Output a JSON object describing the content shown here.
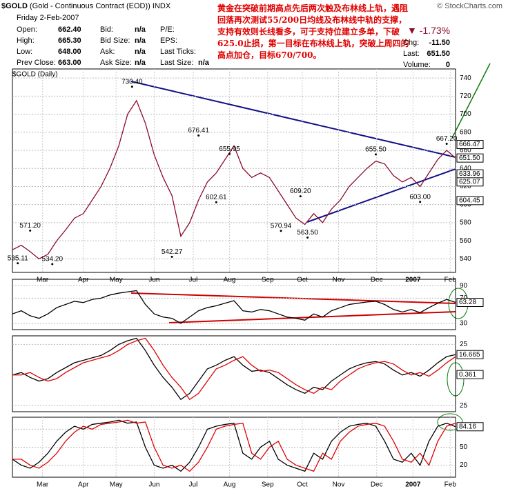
{
  "header": {
    "symbol": "$GOLD",
    "name": "(Gold - Continuous Contract (EOD))",
    "exchange": "INDX",
    "watermark": "© StockCharts.com",
    "date": "Friday  2-Feb-2007",
    "rows": [
      [
        "Open:",
        "662.40",
        "Bid:",
        "n/a",
        "P/E:"
      ],
      [
        "High:",
        "665.30",
        "Bid Size:",
        "n/a",
        "EPS:"
      ],
      [
        "Low:",
        "648.00",
        "Ask:",
        "n/a",
        "Last Ticks:"
      ],
      [
        "Prev Close:",
        "663.00",
        "Ask Size:",
        "n/a",
        "Last Size:",
        "n/a"
      ]
    ],
    "change_pct": "-1.73%",
    "quote": [
      [
        "Chg:",
        "-11.50"
      ],
      [
        "Last:",
        "651.50"
      ],
      [
        "Volume:",
        "0"
      ]
    ]
  },
  "annotation": "黄金在突破前期高点先后两次触及布林线上轨，遇阻回落再次测试55/200日均线及布林线中轨的支撑，支持有效则长线看多，可于支持位建立多单，下破625.0止损，第一目标在布林线上轨，突破上周四的高点加仓，目标670/700。",
  "chart_data": [
    {
      "type": "line",
      "title": "$GOLD (Daily)",
      "x": [
        0,
        1,
        2,
        3,
        4,
        5,
        6,
        7,
        8,
        9,
        10,
        11,
        12,
        13,
        14,
        15,
        16,
        17,
        18,
        19,
        20,
        21,
        22,
        23,
        24,
        25,
        26,
        27,
        28,
        29,
        30,
        31,
        32,
        33,
        34,
        35,
        36,
        37,
        38,
        39,
        40,
        41,
        42,
        43,
        44,
        45,
        46,
        47,
        48,
        49,
        50
      ],
      "series": [
        {
          "name": "$GOLD",
          "color": "#8b0a2a",
          "values": [
            550,
            555,
            548,
            540,
            545,
            560,
            572,
            585,
            590,
            605,
            620,
            640,
            665,
            700,
            715,
            690,
            655,
            630,
            610,
            565,
            580,
            605,
            625,
            635,
            650,
            665,
            640,
            630,
            635,
            630,
            615,
            600,
            585,
            578,
            590,
            580,
            595,
            605,
            620,
            630,
            640,
            648,
            645,
            632,
            625,
            630,
            620,
            635,
            650,
            660,
            651.5
          ]
        }
      ],
      "xlim": [
        0,
        50
      ],
      "xticks": [
        {
          "value": 3.4,
          "label": "Mar"
        },
        {
          "value": 8.0,
          "label": "Apr"
        },
        {
          "value": 11.7,
          "label": "May"
        },
        {
          "value": 16.0,
          "label": "Jun"
        },
        {
          "value": 20.4,
          "label": "Jul"
        },
        {
          "value": 24.5,
          "label": "Aug"
        },
        {
          "value": 28.8,
          "label": "Sep"
        },
        {
          "value": 32.7,
          "label": "Oct"
        },
        {
          "value": 36.8,
          "label": "Nov"
        },
        {
          "value": 41.1,
          "label": "Dec"
        },
        {
          "value": 45.2,
          "label": "2007"
        },
        {
          "value": 49.4,
          "label": "Feb"
        }
      ],
      "ylim": [
        525,
        750
      ],
      "yticks": [
        540,
        560,
        580,
        600,
        620,
        640,
        660,
        680,
        700,
        720,
        740
      ],
      "annotations": [
        {
          "x": 13.5,
          "value": 730.4,
          "label": "730.40"
        },
        {
          "x": 21,
          "value": 676.41,
          "label": "676.41"
        },
        {
          "x": 24.5,
          "value": 655.95,
          "label": "655.95"
        },
        {
          "x": 32.5,
          "value": 609.2,
          "label": "609.20"
        },
        {
          "x": 41,
          "value": 655.5,
          "label": "655.50"
        },
        {
          "x": 49,
          "value": 667.2,
          "label": "667.20"
        },
        {
          "x": 2,
          "value": 571.2,
          "label": "571.20"
        },
        {
          "x": 0.6,
          "value": 535.11,
          "label": "535.11"
        },
        {
          "x": 4.5,
          "value": 534.2,
          "label": "534.20"
        },
        {
          "x": 18,
          "value": 542.27,
          "label": "542.27"
        },
        {
          "x": 23,
          "value": 602.61,
          "label": "602.61"
        },
        {
          "x": 30.3,
          "value": 570.94,
          "label": "570.94"
        },
        {
          "x": 33.3,
          "value": 563.5,
          "label": "563.50"
        },
        {
          "x": 46,
          "value": 603.0,
          "label": "603.00"
        }
      ],
      "last_labels": [
        {
          "value": 666.47,
          "label": "666.47"
        },
        {
          "value": 651.5,
          "label": "651.50"
        },
        {
          "value": 633.96,
          "label": "633.96"
        },
        {
          "value": 625.07,
          "label": "625.07"
        },
        {
          "value": 604.45,
          "label": "604.45"
        }
      ]
    },
    {
      "type": "line",
      "x": [
        0,
        1,
        2,
        3,
        4,
        5,
        6,
        7,
        8,
        9,
        10,
        11,
        12,
        13,
        14,
        15,
        16,
        17,
        18,
        19,
        20,
        21,
        22,
        23,
        24,
        25,
        26,
        27,
        28,
        29,
        30,
        31,
        32,
        33,
        34,
        35,
        36,
        37,
        38,
        39,
        40,
        41,
        42,
        43,
        44,
        45,
        46,
        47,
        48,
        49,
        50
      ],
      "series": [
        {
          "name": "RSI",
          "color": "#000000",
          "values": [
            45,
            50,
            42,
            38,
            45,
            55,
            60,
            65,
            63,
            68,
            70,
            75,
            78,
            80,
            82,
            60,
            45,
            40,
            38,
            30,
            40,
            50,
            55,
            58,
            62,
            66,
            50,
            48,
            52,
            50,
            45,
            40,
            38,
            35,
            45,
            40,
            50,
            55,
            60,
            62,
            64,
            65,
            60,
            52,
            48,
            52,
            47,
            55,
            62,
            68,
            63.28
          ]
        }
      ],
      "xlim": [
        0,
        50
      ],
      "ylim": [
        20,
        100
      ],
      "yticks": [
        30,
        70,
        90
      ],
      "last_labels": [
        {
          "value": 63.28,
          "label": "63.28"
        }
      ]
    },
    {
      "type": "line",
      "x": [
        0,
        1,
        2,
        3,
        4,
        5,
        6,
        7,
        8,
        9,
        10,
        11,
        12,
        13,
        14,
        15,
        16,
        17,
        18,
        19,
        20,
        21,
        22,
        23,
        24,
        25,
        26,
        27,
        28,
        29,
        30,
        31,
        32,
        33,
        34,
        35,
        36,
        37,
        38,
        39,
        40,
        41,
        42,
        43,
        44,
        45,
        46,
        47,
        48,
        49,
        50
      ],
      "series": [
        {
          "name": "MACD",
          "color": "#000000",
          "values": [
            0,
            2,
            -2,
            -5,
            -3,
            2,
            6,
            10,
            12,
            14,
            16,
            20,
            25,
            28,
            30,
            20,
            8,
            -2,
            -10,
            -20,
            -15,
            -5,
            5,
            8,
            12,
            15,
            8,
            3,
            4,
            2,
            -3,
            -8,
            -12,
            -15,
            -10,
            -12,
            -5,
            0,
            5,
            8,
            10,
            11,
            9,
            4,
            0,
            2,
            -1,
            4,
            10,
            15,
            16.665
          ]
        },
        {
          "name": "Signal",
          "color": "#e00000",
          "values": [
            0,
            0,
            2,
            -2,
            -5,
            -3,
            2,
            6,
            10,
            12,
            14,
            16,
            20,
            25,
            28,
            30,
            20,
            8,
            -2,
            -10,
            -20,
            -15,
            -5,
            5,
            8,
            12,
            15,
            8,
            3,
            4,
            2,
            -3,
            -8,
            -12,
            -15,
            -10,
            -12,
            -5,
            0,
            5,
            8,
            10,
            11,
            9,
            4,
            0,
            2,
            -1,
            4,
            10,
            15
          ]
        }
      ],
      "xlim": [
        0,
        50
      ],
      "ylim": [
        -30,
        32
      ],
      "yticks": [
        {
          "value": -25,
          "label": "25"
        },
        25
      ],
      "last_labels": [
        {
          "value": 16.665,
          "label": "16.665"
        },
        {
          "value": 0.361,
          "label": "0.361"
        }
      ]
    },
    {
      "type": "line",
      "x": [
        0,
        1,
        2,
        3,
        4,
        5,
        6,
        7,
        8,
        9,
        10,
        11,
        12,
        13,
        14,
        15,
        16,
        17,
        18,
        19,
        20,
        21,
        22,
        23,
        24,
        25,
        26,
        27,
        28,
        29,
        30,
        31,
        32,
        33,
        34,
        35,
        36,
        37,
        38,
        39,
        40,
        41,
        42,
        43,
        44,
        45,
        46,
        47,
        48,
        49,
        50
      ],
      "series": [
        {
          "name": "%K",
          "color": "#000000",
          "values": [
            30,
            20,
            15,
            25,
            40,
            60,
            75,
            85,
            80,
            88,
            90,
            92,
            95,
            90,
            92,
            50,
            20,
            15,
            20,
            10,
            25,
            50,
            80,
            85,
            88,
            90,
            40,
            30,
            50,
            60,
            30,
            20,
            15,
            10,
            40,
            30,
            60,
            75,
            85,
            88,
            90,
            85,
            60,
            30,
            25,
            40,
            20,
            60,
            85,
            90,
            84.16
          ]
        },
        {
          "name": "%D",
          "color": "#e00000",
          "values": [
            30,
            30,
            20,
            15,
            25,
            40,
            60,
            75,
            85,
            80,
            88,
            90,
            92,
            95,
            90,
            92,
            50,
            20,
            15,
            20,
            10,
            25,
            50,
            80,
            85,
            88,
            90,
            40,
            30,
            50,
            60,
            30,
            20,
            15,
            10,
            40,
            30,
            60,
            75,
            85,
            88,
            90,
            85,
            60,
            30,
            25,
            40,
            20,
            60,
            85,
            90
          ]
        }
      ],
      "xlim": [
        0,
        50
      ],
      "xticks": [
        {
          "value": 3.4,
          "label": "Mar"
        },
        {
          "value": 8.0,
          "label": "Apr"
        },
        {
          "value": 11.7,
          "label": "May"
        },
        {
          "value": 16.0,
          "label": "Jun"
        },
        {
          "value": 20.4,
          "label": "Jul"
        },
        {
          "value": 24.5,
          "label": "Aug"
        },
        {
          "value": 28.8,
          "label": "Sep"
        },
        {
          "value": 32.7,
          "label": "Oct"
        },
        {
          "value": 36.8,
          "label": "Nov"
        },
        {
          "value": 41.1,
          "label": "Dec"
        },
        {
          "value": 45.2,
          "label": "2007"
        },
        {
          "value": 49.4,
          "label": "Feb"
        }
      ],
      "ylim": [
        0,
        100
      ],
      "yticks": [
        20,
        50,
        80
      ],
      "last_labels": [
        {
          "value": 84.16,
          "label": "84.16"
        }
      ]
    }
  ]
}
